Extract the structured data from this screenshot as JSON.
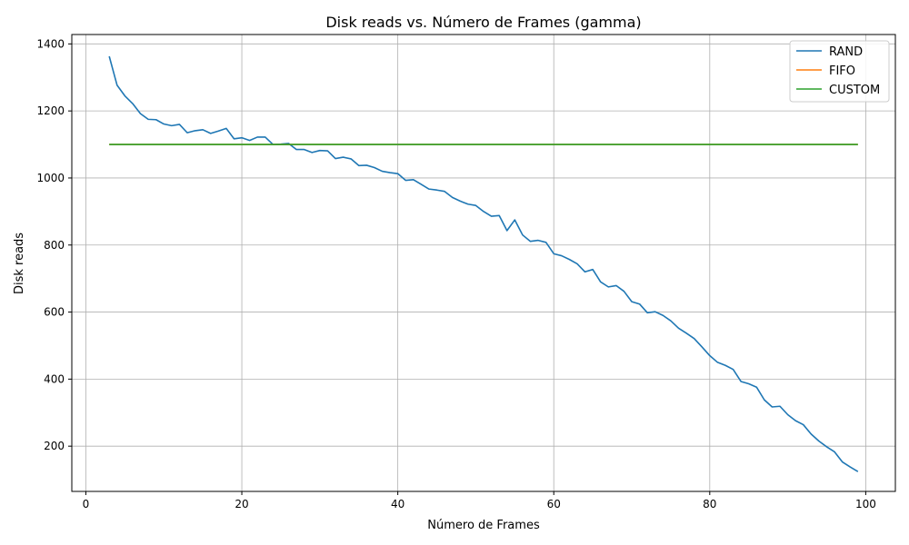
{
  "chart_data": {
    "type": "line",
    "title": "Disk reads vs. Número de Frames (gamma)",
    "xlabel": "Número de Frames",
    "ylabel": "Disk reads",
    "xlim": [
      -1.8,
      103.8
    ],
    "ylim": [
      65,
      1428
    ],
    "xticks": [
      0,
      20,
      40,
      60,
      80,
      100
    ],
    "yticks": [
      200,
      400,
      600,
      800,
      1000,
      1200,
      1400
    ],
    "grid": true,
    "legend_position": "top-right",
    "x": [
      3,
      4,
      5,
      6,
      7,
      8,
      9,
      10,
      11,
      12,
      13,
      14,
      15,
      16,
      17,
      18,
      19,
      20,
      21,
      22,
      23,
      24,
      25,
      26,
      27,
      28,
      29,
      30,
      31,
      32,
      33,
      34,
      35,
      36,
      37,
      38,
      39,
      40,
      41,
      42,
      43,
      44,
      45,
      46,
      47,
      48,
      49,
      50,
      51,
      52,
      53,
      54,
      55,
      56,
      57,
      58,
      59,
      60,
      61,
      62,
      63,
      64,
      65,
      66,
      67,
      68,
      69,
      70,
      71,
      72,
      73,
      74,
      75,
      76,
      77,
      78,
      79,
      80,
      81,
      82,
      83,
      84,
      85,
      86,
      87,
      88,
      89,
      90,
      91,
      92,
      93,
      94,
      95,
      96,
      97,
      98,
      99
    ],
    "series": [
      {
        "name": "RAND",
        "color": "#1f77b4",
        "values": [
          1363,
          1277,
          1245,
          1222,
          1192,
          1175,
          1174,
          1161,
          1156,
          1160,
          1135,
          1141,
          1144,
          1133,
          1140,
          1148,
          1117,
          1120,
          1112,
          1122,
          1122,
          1100,
          1101,
          1103,
          1085,
          1085,
          1076,
          1082,
          1081,
          1058,
          1062,
          1057,
          1037,
          1038,
          1031,
          1020,
          1016,
          1013,
          993,
          995,
          981,
          967,
          964,
          960,
          942,
          931,
          922,
          918,
          900,
          886,
          888,
          843,
          875,
          830,
          811,
          814,
          808,
          774,
          768,
          757,
          744,
          720,
          727,
          690,
          675,
          679,
          662,
          631,
          624,
          598,
          601,
          590,
          574,
          552,
          537,
          521,
          496,
          470,
          450,
          441,
          429,
          393,
          386,
          376,
          338,
          317,
          319,
          294,
          276,
          264,
          236,
          215,
          198,
          183,
          153,
          138,
          124
        ]
      },
      {
        "name": "FIFO",
        "color": "#ff7f0e",
        "values": [
          1100,
          1100,
          1100,
          1100,
          1100,
          1100,
          1100,
          1100,
          1100,
          1100,
          1100,
          1100,
          1100,
          1100,
          1100,
          1100,
          1100,
          1100,
          1100,
          1100,
          1100,
          1100,
          1100,
          1100,
          1100,
          1100,
          1100,
          1100,
          1100,
          1100,
          1100,
          1100,
          1100,
          1100,
          1100,
          1100,
          1100,
          1100,
          1100,
          1100,
          1100,
          1100,
          1100,
          1100,
          1100,
          1100,
          1100,
          1100,
          1100,
          1100,
          1100,
          1100,
          1100,
          1100,
          1100,
          1100,
          1100,
          1100,
          1100,
          1100,
          1100,
          1100,
          1100,
          1100,
          1100,
          1100,
          1100,
          1100,
          1100,
          1100,
          1100,
          1100,
          1100,
          1100,
          1100,
          1100,
          1100,
          1100,
          1100,
          1100,
          1100,
          1100,
          1100,
          1100,
          1100,
          1100,
          1100,
          1100,
          1100,
          1100,
          1100,
          1100,
          1100,
          1100,
          1100,
          1100,
          1100
        ]
      },
      {
        "name": "CUSTOM",
        "color": "#2ca02c",
        "values": [
          1100,
          1100,
          1100,
          1100,
          1100,
          1100,
          1100,
          1100,
          1100,
          1100,
          1100,
          1100,
          1100,
          1100,
          1100,
          1100,
          1100,
          1100,
          1100,
          1100,
          1100,
          1100,
          1100,
          1100,
          1100,
          1100,
          1100,
          1100,
          1100,
          1100,
          1100,
          1100,
          1100,
          1100,
          1100,
          1100,
          1100,
          1100,
          1100,
          1100,
          1100,
          1100,
          1100,
          1100,
          1100,
          1100,
          1100,
          1100,
          1100,
          1100,
          1100,
          1100,
          1100,
          1100,
          1100,
          1100,
          1100,
          1100,
          1100,
          1100,
          1100,
          1100,
          1100,
          1100,
          1100,
          1100,
          1100,
          1100,
          1100,
          1100,
          1100,
          1100,
          1100,
          1100,
          1100,
          1100,
          1100,
          1100,
          1100,
          1100,
          1100,
          1100,
          1100,
          1100,
          1100,
          1100,
          1100,
          1100,
          1100,
          1100,
          1100,
          1100,
          1100,
          1100,
          1100,
          1100,
          1100
        ]
      }
    ]
  }
}
